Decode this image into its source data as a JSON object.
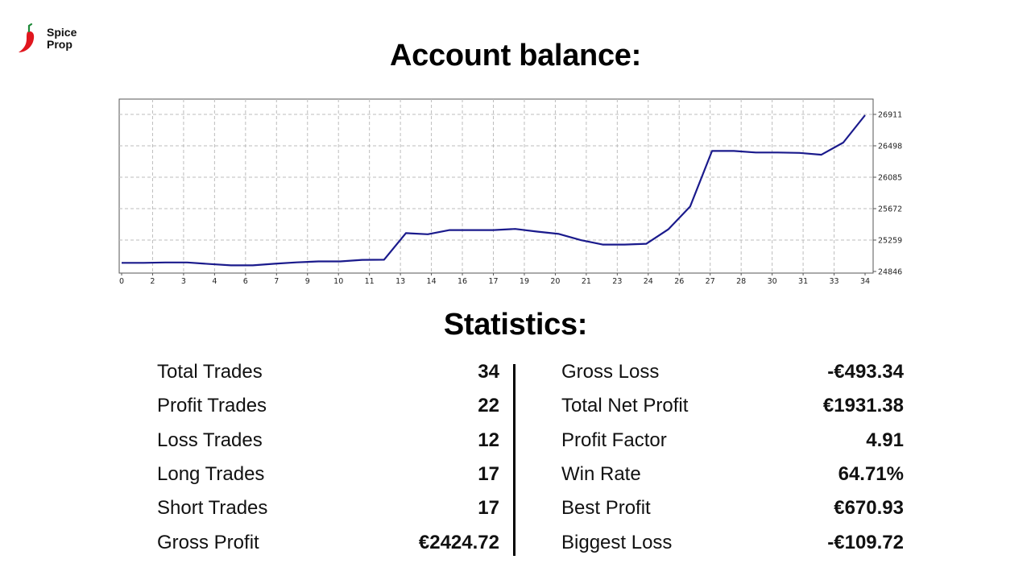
{
  "brand": {
    "line1": "Spice",
    "line2": "Prop",
    "logo_color": "#e0161e"
  },
  "page_title": "Account balance:",
  "stats_title": "Statistics:",
  "chart_data": {
    "type": "line",
    "line_color": "#1a1a8c",
    "grid": true,
    "x": [
      0,
      1,
      2,
      3,
      4,
      5,
      6,
      7,
      8,
      9,
      10,
      11,
      12,
      13,
      14,
      15,
      16,
      17,
      18,
      19,
      20,
      21,
      22,
      23,
      24,
      25,
      26,
      27,
      28,
      29,
      30,
      31,
      32,
      33,
      34
    ],
    "x_tick_labels": [
      "0",
      "2",
      "3",
      "4",
      "6",
      "7",
      "9",
      "10",
      "11",
      "13",
      "14",
      "16",
      "17",
      "19",
      "20",
      "21",
      "23",
      "24",
      "26",
      "27",
      "28",
      "30",
      "31",
      "33",
      "34"
    ],
    "series": [
      {
        "values": [
          24959,
          24959,
          24965,
          24965,
          24944,
          24927,
          24927,
          24948,
          24966,
          24978,
          24978,
          24998,
          25001,
          25350,
          25335,
          25390,
          25390,
          25390,
          25405,
          25370,
          25340,
          25258,
          25200,
          25200,
          25210,
          25400,
          25700,
          26430,
          26430,
          26410,
          26410,
          26405,
          26380,
          26540,
          26900
        ]
      }
    ],
    "ylim": [
      24846,
      26911
    ],
    "y_ticks": [
      24846,
      25259,
      25672,
      26085,
      26498,
      26911
    ]
  },
  "stats_left": [
    {
      "label": "Total Trades",
      "value": "34"
    },
    {
      "label": "Profit Trades",
      "value": "22"
    },
    {
      "label": "Loss Trades",
      "value": "12"
    },
    {
      "label": "Long Trades",
      "value": "17"
    },
    {
      "label": "Short Trades",
      "value": "17"
    },
    {
      "label": "Gross Profit",
      "value": "€2424.72"
    }
  ],
  "stats_right": [
    {
      "label": "Gross Loss",
      "value": "-€493.34"
    },
    {
      "label": "Total Net Profit",
      "value": "€1931.38"
    },
    {
      "label": "Profit Factor",
      "value": "4.91"
    },
    {
      "label": "Win Rate",
      "value": "64.71%"
    },
    {
      "label": "Best Profit",
      "value": "€670.93"
    },
    {
      "label": "Biggest Loss",
      "value": "-€109.72"
    }
  ]
}
